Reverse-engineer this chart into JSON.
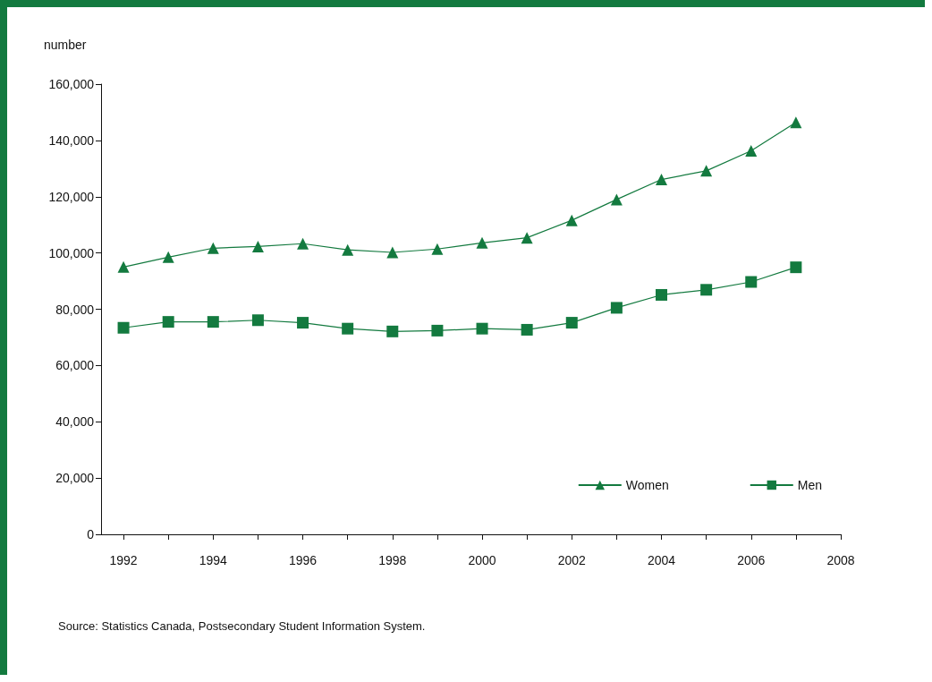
{
  "chart_data": {
    "type": "line",
    "ylabel": "number",
    "x": [
      1992,
      1993,
      1994,
      1995,
      1996,
      1997,
      1998,
      1999,
      2000,
      2001,
      2002,
      2003,
      2004,
      2005,
      2006,
      2007
    ],
    "series": [
      {
        "name": "Women",
        "color": "#137a3f",
        "marker": "triangle",
        "values": [
          95000,
          98500,
          101700,
          102300,
          103300,
          101100,
          100200,
          101400,
          103600,
          105400,
          111600,
          119000,
          126100,
          129200,
          136300,
          146400
        ]
      },
      {
        "name": "Men",
        "color": "#137a3f",
        "marker": "square",
        "values": [
          73400,
          75500,
          75500,
          76100,
          75200,
          73100,
          72100,
          72400,
          73100,
          72700,
          75200,
          80500,
          85100,
          86900,
          89700,
          94900
        ]
      }
    ],
    "xlim": [
      1991.5,
      2008
    ],
    "xticks": [
      1992,
      {
        "value": 1993,
        "label": null
      },
      1994,
      {
        "value": 1995,
        "label": null
      },
      1996,
      {
        "value": 1997,
        "label": null
      },
      1998,
      {
        "value": 1999,
        "label": null
      },
      2000,
      {
        "value": 2001,
        "label": null
      },
      2002,
      {
        "value": 2003,
        "label": null
      },
      2004,
      {
        "value": 2005,
        "label": null
      },
      2006,
      {
        "value": 2007,
        "label": null
      },
      2008
    ],
    "ylim": [
      0,
      160000
    ],
    "yticks": [
      0,
      {
        "value": 20000,
        "label": "20,000"
      },
      {
        "value": 40000,
        "label": "40,000"
      },
      {
        "value": 60000,
        "label": "60,000"
      },
      {
        "value": 80000,
        "label": "80,000"
      },
      {
        "value": 100000,
        "label": "100,000"
      },
      {
        "value": 120000,
        "label": "120,000"
      },
      {
        "value": 140000,
        "label": "140,000"
      },
      {
        "value": 160000,
        "label": "160,000"
      }
    ],
    "grid": false,
    "legend": "bottom right",
    "line_style": "solid",
    "annotations": [
      "Source: Statistics Canada, Postsecondary Student Information System."
    ]
  }
}
